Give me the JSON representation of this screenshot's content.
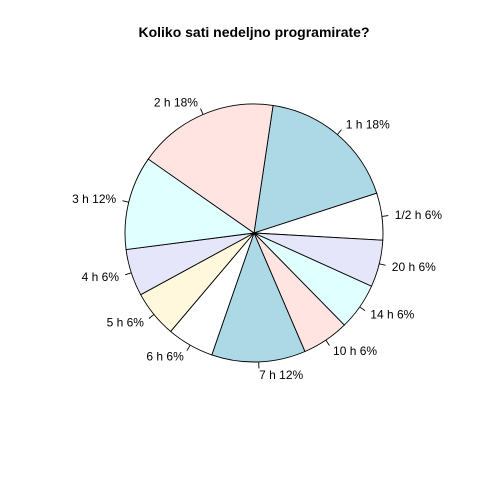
{
  "chart_data": {
    "type": "pie",
    "title": "Koliko sati nedeljno programirate?",
    "categories": [
      "1 h",
      "1/2 h",
      "20 h",
      "14 h",
      "10 h",
      "7 h",
      "6 h",
      "5 h",
      "4 h",
      "3 h",
      "2 h"
    ],
    "values": [
      18,
      6,
      6,
      6,
      6,
      12,
      6,
      6,
      6,
      12,
      18
    ],
    "labels": [
      "1 h 18%",
      "1/2 h 6%",
      "20 h 6%",
      "14 h 6%",
      "10 h 6%",
      "7 h 12%",
      "6 h 6%",
      "5 h 6%",
      "4 h 6%",
      "3 h 12%",
      "2 h 18%"
    ],
    "colors": [
      "#ADD8E6",
      "#FFFFFF",
      "#E6E6FA",
      "#E0FFFF",
      "#FFE4E1",
      "#ADD8E6",
      "#FFFFFF",
      "#FFF8DC",
      "#E6E6FA",
      "#E0FFFF",
      "#FFE4E1"
    ],
    "start_angle_deg": 81.5,
    "direction": "clockwise"
  }
}
